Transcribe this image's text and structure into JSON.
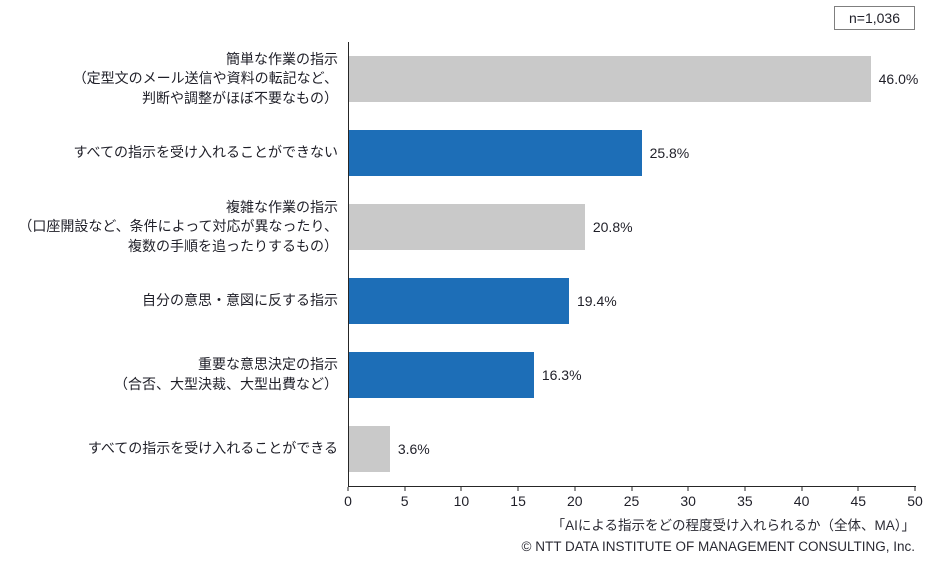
{
  "header": {
    "n_label": "n=1,036"
  },
  "chart_data": {
    "type": "bar",
    "orientation": "horizontal",
    "title": "「AIによる指示をどの程度受け入れられるか（全体、MA）」",
    "categories": [
      [
        "簡単な作業の指示",
        "（定型文のメール送信や資料の転記など、",
        "判断や調整がほぼ不要なもの）"
      ],
      [
        "すべての指示を受け入れることができない"
      ],
      [
        "複雑な作業の指示",
        "（口座開設など、条件によって対応が異なったり、",
        "複数の手順を追ったりするもの）"
      ],
      [
        "自分の意思・意図に反する指示"
      ],
      [
        "重要な意思決定の指示",
        "（合否、大型決裁、大型出費など）"
      ],
      [
        "すべての指示を受け入れることができる"
      ]
    ],
    "values": [
      46.0,
      25.8,
      20.8,
      19.4,
      16.3,
      3.6
    ],
    "value_labels": [
      "46.0%",
      "25.8%",
      "20.8%",
      "19.4%",
      "16.3%",
      "3.6%"
    ],
    "bar_colors": [
      "#c9c9c9",
      "#1d6eb7",
      "#c9c9c9",
      "#1d6eb7",
      "#1d6eb7",
      "#c9c9c9"
    ],
    "xlim": [
      0,
      50
    ],
    "x_ticks": [
      0,
      5,
      10,
      15,
      20,
      25,
      30,
      35,
      40,
      45,
      50
    ],
    "xlabel": "",
    "ylabel": "",
    "grid": false,
    "legend": "none",
    "annotation": "n=1,036"
  },
  "footer": {
    "copyright": "© NTT DATA INSTITUTE OF MANAGEMENT CONSULTING, Inc."
  },
  "colors": {
    "bar_gray": "#c9c9c9",
    "bar_blue": "#1d6eb7",
    "axis": "#262626",
    "text": "#1f1f28"
  }
}
